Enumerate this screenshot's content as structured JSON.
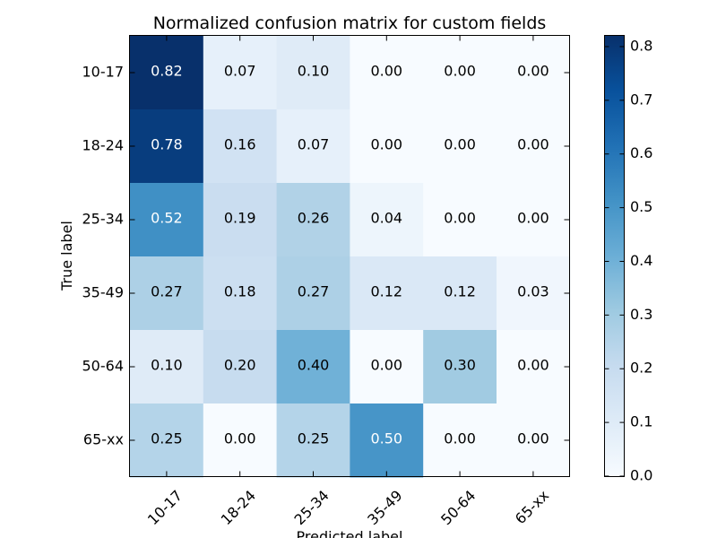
{
  "chart_data": {
    "type": "heatmap",
    "title": "Normalized confusion matrix for custom fields",
    "xlabel": "Predicted label",
    "ylabel": "True label",
    "x_categories": [
      "10-17",
      "18-24",
      "25-34",
      "35-49",
      "50-64",
      "65-xx"
    ],
    "y_categories": [
      "10-17",
      "18-24",
      "25-34",
      "35-49",
      "50-64",
      "65-xx"
    ],
    "values": [
      [
        0.82,
        0.07,
        0.1,
        0.0,
        0.0,
        0.0
      ],
      [
        0.78,
        0.16,
        0.07,
        0.0,
        0.0,
        0.0
      ],
      [
        0.52,
        0.19,
        0.26,
        0.04,
        0.0,
        0.0
      ],
      [
        0.27,
        0.18,
        0.27,
        0.12,
        0.12,
        0.03
      ],
      [
        0.1,
        0.2,
        0.4,
        0.0,
        0.3,
        0.0
      ],
      [
        0.25,
        0.0,
        0.25,
        0.5,
        0.0,
        0.0
      ]
    ],
    "colormap": "Blues",
    "value_range": [
      0.0,
      0.82
    ],
    "colorbar_ticks": [
      "0.0",
      "0.1",
      "0.2",
      "0.3",
      "0.4",
      "0.5",
      "0.6",
      "0.7",
      "0.8"
    ],
    "x_tick_rotation_deg": 45,
    "grid": false,
    "legend": "colorbar-right",
    "label_color_light": "#ffffff",
    "label_color_dark": "#000000"
  }
}
